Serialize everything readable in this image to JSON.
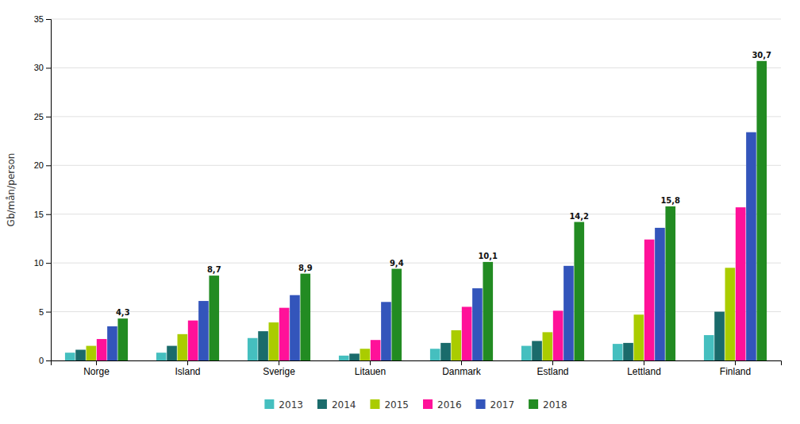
{
  "chart_data": {
    "type": "bar",
    "categories": [
      "Norge",
      "Island",
      "Sverige",
      "Litauen",
      "Danmark",
      "Estland",
      "Lettland",
      "Finland"
    ],
    "series": [
      {
        "name": "2013",
        "color": "#45BFBF",
        "values": [
          0.8,
          0.8,
          2.3,
          0.5,
          1.2,
          1.5,
          1.7,
          2.6
        ]
      },
      {
        "name": "2014",
        "color": "#1A6B6B",
        "values": [
          1.1,
          1.5,
          3.0,
          0.7,
          1.8,
          2.0,
          1.8,
          5.0
        ]
      },
      {
        "name": "2015",
        "color": "#AACC00",
        "values": [
          1.5,
          2.7,
          3.9,
          1.2,
          3.1,
          2.9,
          4.7,
          9.5
        ]
      },
      {
        "name": "2016",
        "color": "#FF1199",
        "values": [
          2.2,
          4.1,
          5.4,
          2.1,
          5.5,
          5.1,
          12.4,
          15.7
        ]
      },
      {
        "name": "2017",
        "color": "#3355BB",
        "values": [
          3.5,
          6.1,
          6.7,
          6.0,
          7.4,
          9.7,
          13.6,
          23.4
        ]
      },
      {
        "name": "2018",
        "color": "#228B22",
        "values": [
          4.3,
          8.7,
          8.9,
          9.4,
          10.1,
          14.2,
          15.8,
          30.7
        ],
        "data_labels": true,
        "value_labels": [
          "4,3",
          "8,7",
          "8,9",
          "9,4",
          "10,1",
          "14,2",
          "15,8",
          "30,7"
        ]
      }
    ],
    "y_label": "Gb/mån/person",
    "ylim": [
      0,
      35
    ],
    "yticks": [
      0,
      5,
      10,
      15,
      20,
      25,
      30,
      35
    ],
    "grid": true,
    "legend": "bottom"
  }
}
